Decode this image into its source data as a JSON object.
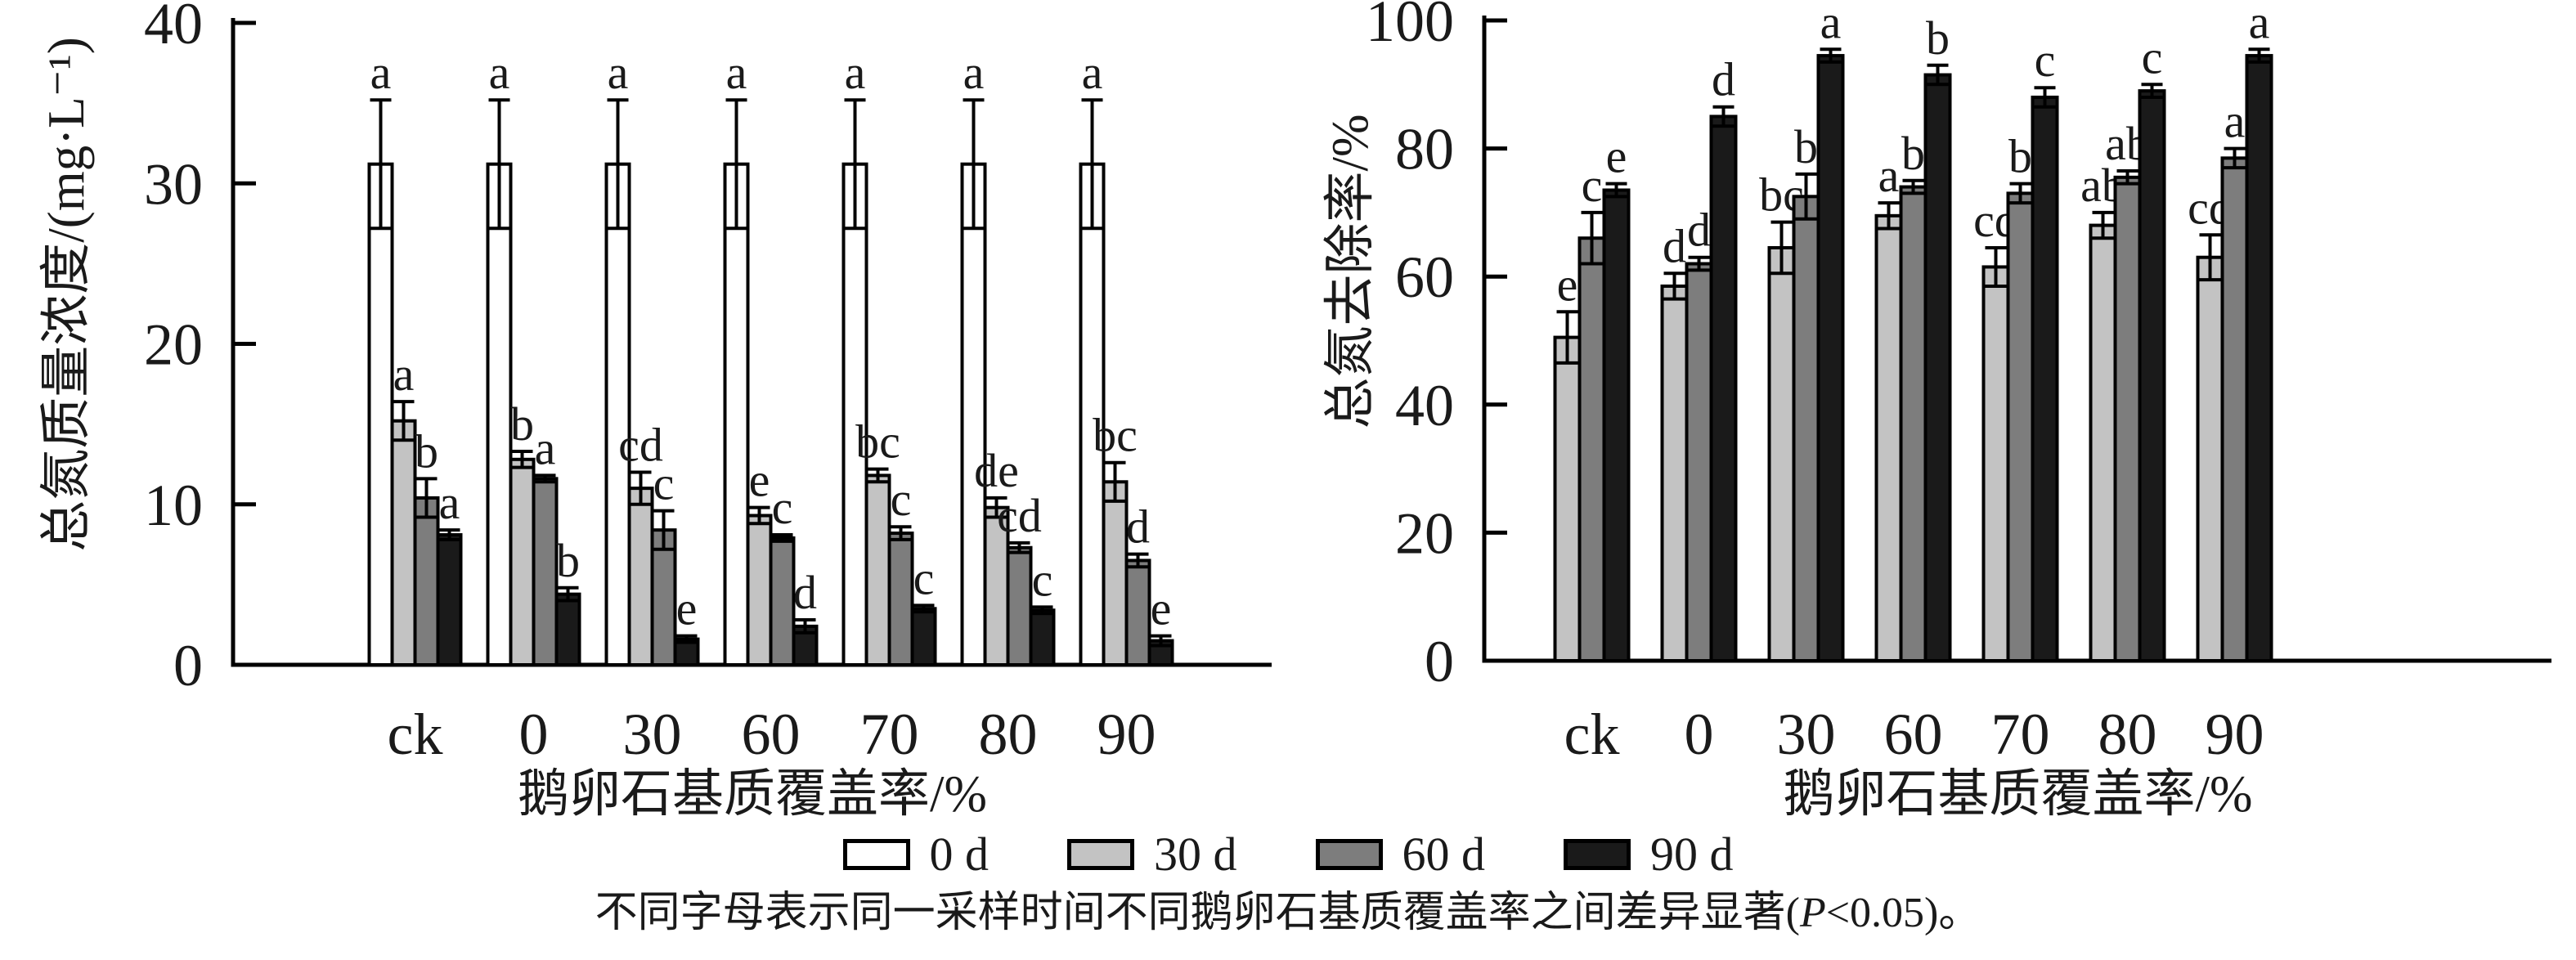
{
  "caption": {
    "prefix": "不同字母表示同一采样时间不同鹅卵石基质覆盖率之间差异显著(",
    "p": "P",
    "suffix": "<0.05)。"
  },
  "legend": {
    "items": [
      {
        "label": "0 d",
        "color": "#ffffff"
      },
      {
        "label": "30 d",
        "color": "#c3c3c3"
      },
      {
        "label": "60 d",
        "color": "#7d7d7d"
      },
      {
        "label": "90 d",
        "color": "#1a1a1a"
      }
    ]
  },
  "colors": {
    "axis": "#000000",
    "bar_outline": "#000000",
    "text": "#1a1a1a"
  },
  "chart_data": [
    {
      "type": "bar",
      "panel": "left",
      "title": "",
      "ylabel": "总氮质量浓度/(mg·L⁻¹)",
      "xlabel": "鹅卵石基质覆盖率/%",
      "ylim": [
        0,
        40
      ],
      "yticks": [
        0,
        10,
        20,
        30,
        40
      ],
      "grid": false,
      "categories": [
        "ck",
        "0",
        "30",
        "60",
        "70",
        "80",
        "90"
      ],
      "series": [
        {
          "name": "0 d",
          "color": "#ffffff",
          "values": [
            31.2,
            31.2,
            31.2,
            31.2,
            31.2,
            31.2,
            31.2
          ],
          "errors": [
            4.0,
            4.0,
            4.0,
            4.0,
            4.0,
            4.0,
            4.0
          ],
          "letters": [
            "a",
            "a",
            "a",
            "a",
            "a",
            "a",
            "a"
          ]
        },
        {
          "name": "30 d",
          "color": "#c3c3c3",
          "values": [
            15.2,
            12.8,
            11.0,
            9.3,
            11.8,
            9.8,
            11.4
          ],
          "errors": [
            1.2,
            0.5,
            1.0,
            0.5,
            0.4,
            0.6,
            1.2
          ],
          "letters": [
            "a",
            "b",
            "cd",
            "e",
            "bc",
            "de",
            "bc"
          ]
        },
        {
          "name": "60 d",
          "color": "#7d7d7d",
          "values": [
            10.4,
            11.6,
            8.4,
            7.9,
            8.2,
            7.3,
            6.5
          ],
          "errors": [
            1.2,
            0.2,
            1.2,
            0.2,
            0.4,
            0.3,
            0.4
          ],
          "letters": [
            "b",
            "a",
            "c",
            "c",
            "c",
            "cd",
            "d"
          ]
        },
        {
          "name": "90 d",
          "color": "#1a1a1a",
          "values": [
            8.1,
            4.4,
            1.6,
            2.4,
            3.5,
            3.4,
            1.5
          ],
          "errors": [
            0.3,
            0.4,
            0.2,
            0.4,
            0.2,
            0.2,
            0.3
          ],
          "letters": [
            "a",
            "b",
            "e",
            "d",
            "c",
            "c",
            "e"
          ]
        }
      ]
    },
    {
      "type": "bar",
      "panel": "right",
      "title": "",
      "ylabel": "总氮去除率/%",
      "xlabel": "鹅卵石基质覆盖率/%",
      "ylim": [
        0,
        100
      ],
      "yticks": [
        0,
        20,
        40,
        60,
        80,
        100
      ],
      "grid": false,
      "categories": [
        "ck",
        "0",
        "30",
        "60",
        "70",
        "80",
        "90"
      ],
      "series": [
        {
          "name": "30 d",
          "color": "#c3c3c3",
          "values": [
            50.5,
            58.5,
            64.5,
            69.5,
            61.5,
            68.0,
            63.0
          ],
          "errors": [
            4.0,
            2.0,
            4.0,
            2.0,
            3.0,
            2.0,
            3.5
          ],
          "letters": [
            "e",
            "d",
            "bc",
            "a",
            "cd",
            "ab",
            "cd"
          ]
        },
        {
          "name": "60 d",
          "color": "#7d7d7d",
          "values": [
            66.0,
            62.0,
            72.5,
            74.0,
            73.0,
            75.5,
            78.5
          ],
          "errors": [
            4.0,
            1.0,
            3.5,
            1.0,
            1.5,
            1.0,
            1.5
          ],
          "letters": [
            "c",
            "d",
            "b",
            "b",
            "b",
            "ab",
            "a"
          ]
        },
        {
          "name": "90 d",
          "color": "#1a1a1a",
          "values": [
            73.5,
            85.0,
            94.5,
            91.5,
            88.0,
            89.0,
            94.5
          ],
          "errors": [
            1.0,
            1.5,
            1.0,
            1.5,
            1.5,
            1.0,
            1.0
          ],
          "letters": [
            "e",
            "d",
            "a",
            "b",
            "c",
            "c",
            "a"
          ]
        }
      ]
    }
  ]
}
